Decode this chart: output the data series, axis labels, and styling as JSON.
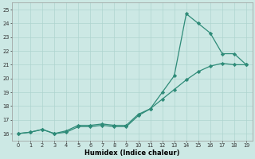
{
  "xlabel": "Humidex (Indice chaleur)",
  "x": [
    0,
    1,
    2,
    3,
    4,
    5,
    6,
    7,
    8,
    9,
    10,
    11,
    12,
    13,
    14,
    15,
    16,
    17,
    18,
    19
  ],
  "line1_y": [
    16.0,
    16.1,
    16.3,
    16.0,
    16.1,
    16.5,
    16.5,
    16.6,
    16.5,
    16.5,
    17.3,
    17.8,
    18.5,
    19.2,
    19.9,
    20.5,
    20.9,
    21.1,
    21.0,
    21.0
  ],
  "line2_y": [
    16.0,
    16.1,
    16.3,
    16.0,
    16.2,
    16.6,
    16.6,
    16.7,
    16.6,
    16.6,
    17.4,
    17.8,
    19.0,
    20.2,
    24.7,
    24.0,
    23.3,
    21.8,
    21.8,
    21.0
  ],
  "line_color": "#2e8b78",
  "bg_color": "#cce8e4",
  "grid_color": "#aed4cf",
  "ylim": [
    15.5,
    25.5
  ],
  "xlim": [
    -0.5,
    19.5
  ],
  "yticks": [
    16,
    17,
    18,
    19,
    20,
    21,
    22,
    23,
    24,
    25
  ],
  "xticks": [
    0,
    1,
    2,
    3,
    4,
    5,
    6,
    7,
    8,
    9,
    10,
    11,
    12,
    13,
    14,
    15,
    16,
    17,
    18,
    19
  ],
  "marker": "D",
  "markersize": 2.2,
  "linewidth": 0.9
}
